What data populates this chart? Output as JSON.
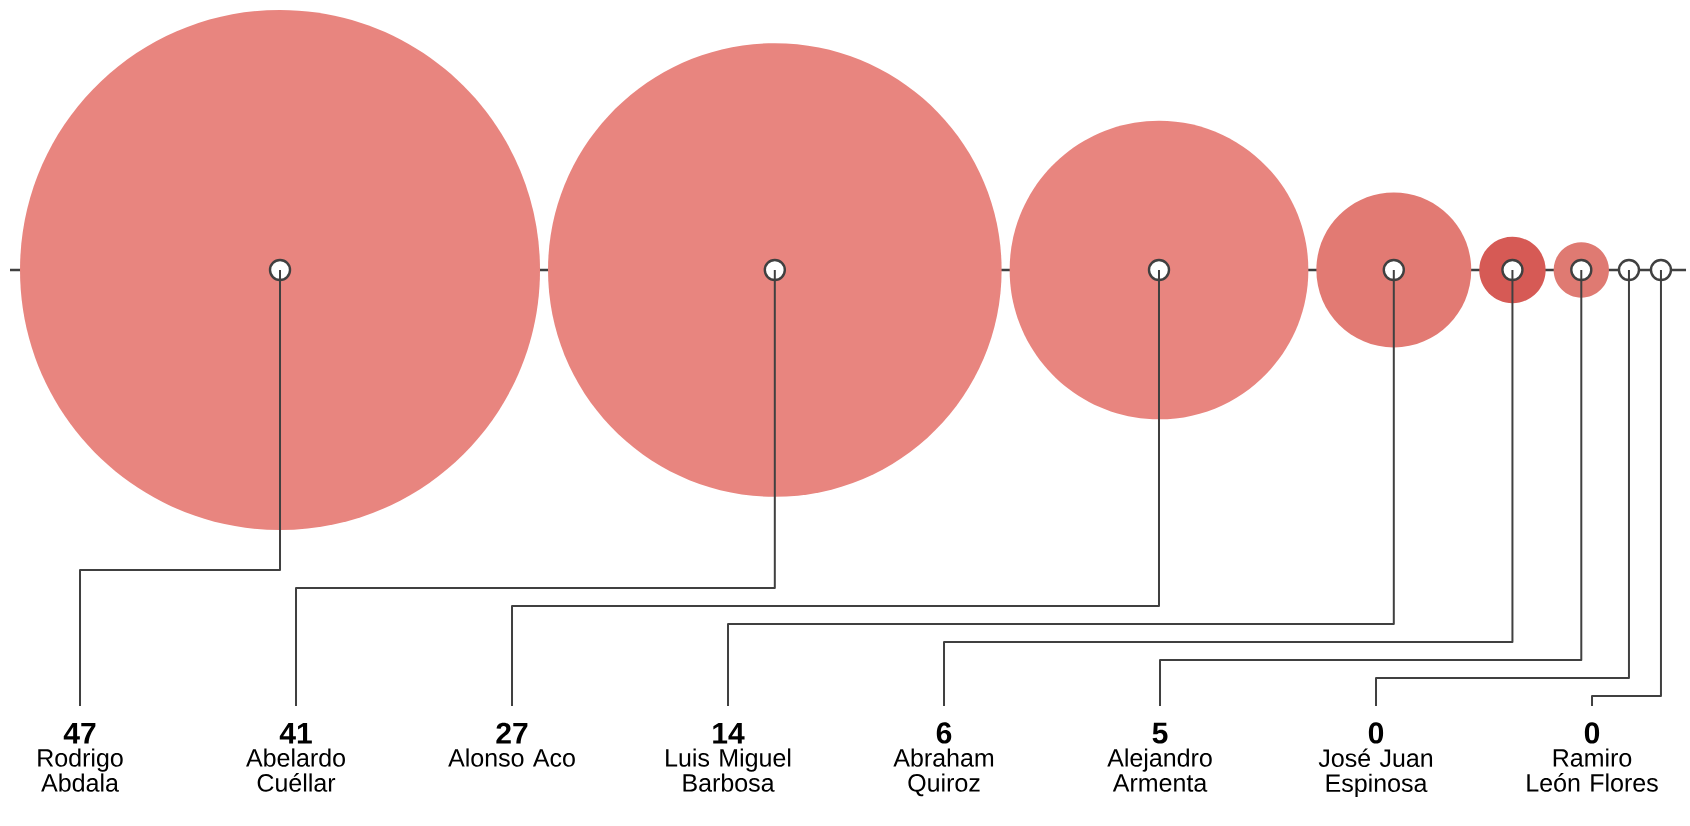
{
  "chart_data": {
    "type": "other",
    "categories": [
      "Rodrigo Abdala",
      "Abelardo Cuéllar",
      "Alonso Aco",
      "Luis Miguel Barbosa",
      "Abraham Quiroz",
      "Alejandro Armenta",
      "José Juan Espinosa",
      "Ramiro León Flores"
    ],
    "values": [
      47,
      41,
      27,
      14,
      6,
      5,
      0,
      0
    ],
    "colors": [
      "#e8857f",
      "#e8857f",
      "#e8857f",
      "#e27a73",
      "#d65a55",
      "#df7a72",
      "#ffffff",
      "#ffffff"
    ],
    "data_labels": true
  }
}
